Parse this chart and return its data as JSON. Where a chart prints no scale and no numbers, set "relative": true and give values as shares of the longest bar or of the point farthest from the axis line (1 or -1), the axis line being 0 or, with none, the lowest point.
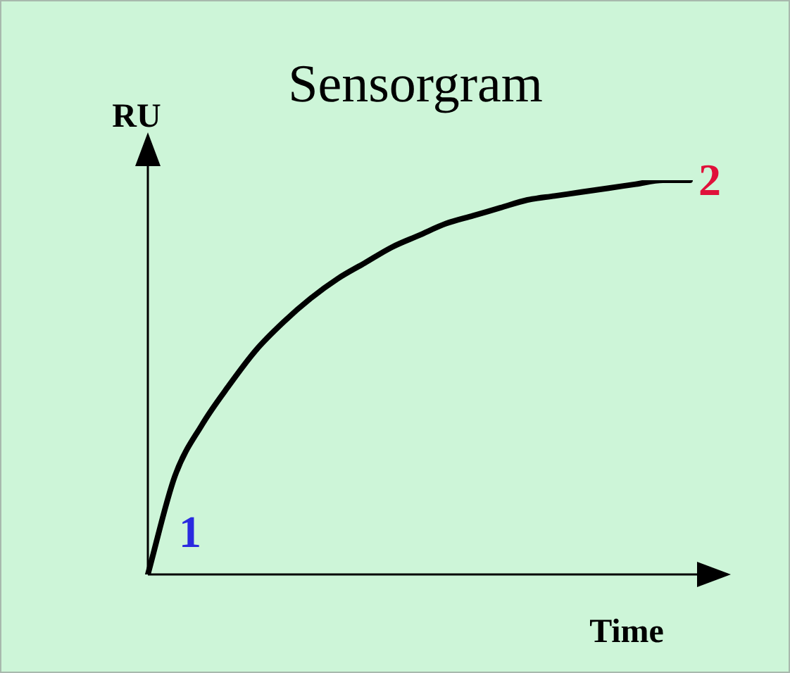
{
  "chart_data": {
    "type": "line",
    "title": "Sensorgram",
    "xlabel": "Time",
    "ylabel": "RU",
    "relative": true,
    "categories": [
      null,
      null,
      null,
      null,
      null,
      null,
      null,
      null,
      null,
      null,
      null,
      null,
      null,
      null,
      null,
      null,
      null,
      null,
      null,
      null,
      null
    ],
    "values": [
      0,
      0.25,
      0.38,
      0.48,
      0.57,
      0.64,
      0.7,
      0.75,
      0.79,
      0.83,
      0.86,
      0.89,
      0.91,
      0.93,
      0.95,
      0.96,
      0.97,
      0.98,
      0.99,
      1,
      1
    ],
    "color": "#000000",
    "marker": "none",
    "annotations": [
      "1",
      "2"
    ]
  }
}
